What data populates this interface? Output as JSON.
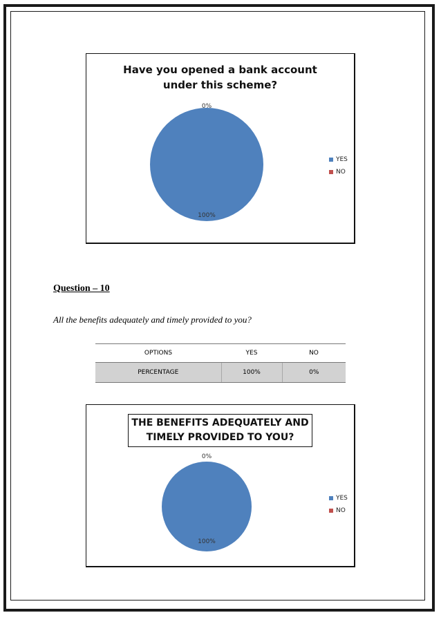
{
  "chart_data": [
    {
      "type": "pie",
      "title_lines": [
        "Have you opened a bank account",
        "under this scheme?"
      ],
      "categories": [
        "YES",
        "NO"
      ],
      "values": [
        100,
        0
      ],
      "labels": [
        "100%",
        "0%"
      ],
      "colors": [
        "#4f81bd",
        "#c0504d"
      ],
      "legend": "right"
    },
    {
      "type": "pie",
      "title_lines": [
        "THE BENEFITS ADEQUATELY AND",
        "TIMELY PROVIDED TO YOU?"
      ],
      "categories": [
        "YES",
        "NO"
      ],
      "values": [
        100,
        0
      ],
      "labels": [
        "100%",
        "0%"
      ],
      "colors": [
        "#4f81bd",
        "#c0504d"
      ],
      "legend": "right"
    }
  ],
  "question": {
    "heading": "Question – 10",
    "text": "All the benefits adequately and timely provided to you?"
  },
  "table": {
    "header": [
      "OPTIONS",
      "YES",
      "NO"
    ],
    "row": [
      "PERCENTAGE",
      "100%",
      "0%"
    ]
  }
}
